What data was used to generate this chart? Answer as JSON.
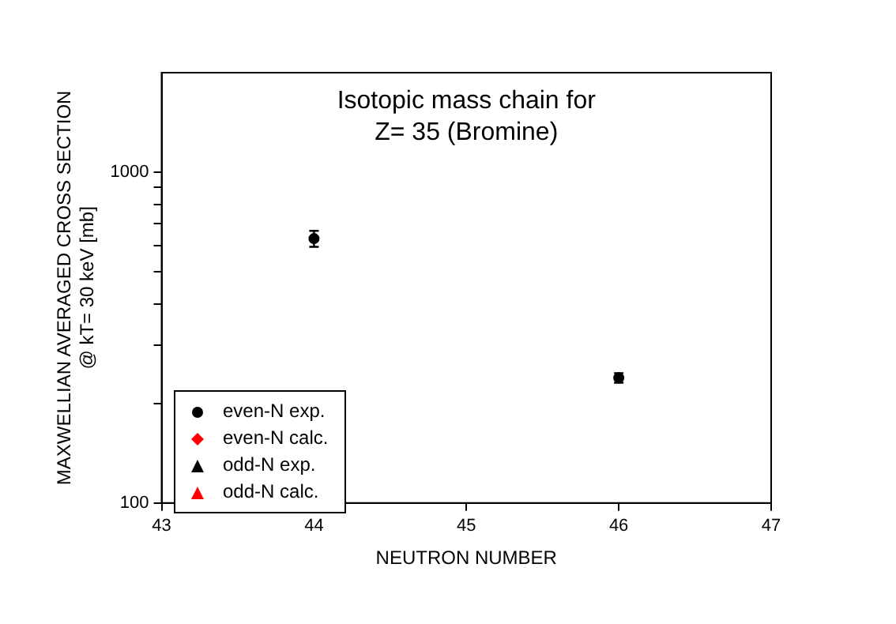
{
  "chart_data": {
    "type": "scatter",
    "title": "Isotopic mass chain for\nZ= 35 (Bromine)",
    "xlabel": "NEUTRON NUMBER",
    "ylabel": "MAXWELLIAN AVERAGED CROSS SECTION\n@ kT= 30 keV [mb]",
    "series": [
      {
        "name": "even-N exp.",
        "color": "#000000",
        "marker": "circle",
        "x": [
          44,
          46
        ],
        "values": [
          630,
          239
        ],
        "errors": [
          35,
          8
        ]
      },
      {
        "name": "even-N calc.",
        "color": "#ff0000",
        "marker": "diamond"
      },
      {
        "name": "odd-N exp.",
        "color": "#000000",
        "marker": "triangle"
      },
      {
        "name": "odd-N calc.",
        "color": "#ff0000",
        "marker": "triangle"
      }
    ],
    "xlim": [
      43,
      47
    ],
    "xticks": [
      43,
      44,
      45,
      46,
      47
    ],
    "ylim": [
      100,
      2000
    ],
    "log": "y",
    "yticks": [
      100,
      {
        "value": 200,
        "label": null
      },
      {
        "value": 300,
        "label": null
      },
      {
        "value": 400,
        "label": null
      },
      {
        "value": 500,
        "label": null
      },
      {
        "value": 600,
        "label": null
      },
      {
        "value": 700,
        "label": null
      },
      {
        "value": 800,
        "label": null
      },
      {
        "value": 900,
        "label": null
      },
      1000
    ],
    "grid": false,
    "legend": "bottom left"
  }
}
